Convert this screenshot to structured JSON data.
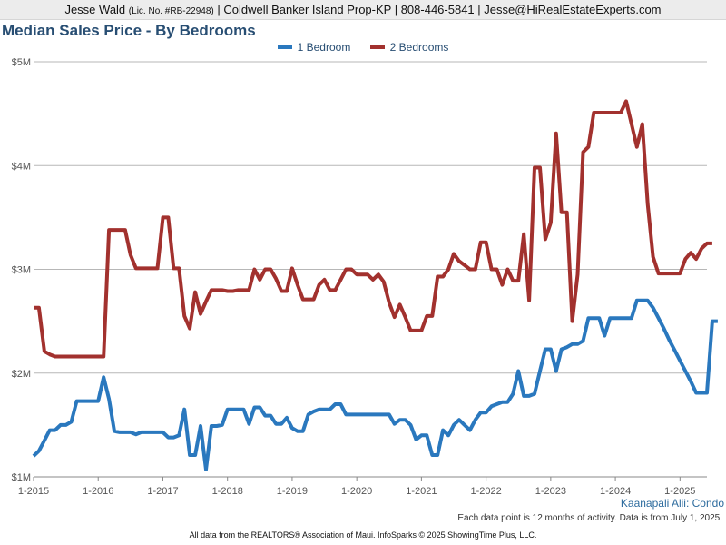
{
  "header": {
    "agent": "Jesse Wald",
    "license": "(Lic. No. #RB-22948)",
    "rest": "| Coldwell Banker Island Prop-KP | 808-446-5841 | Jesse@HiRealEstateExperts.com"
  },
  "region": "Kaanapali Alii: Condo",
  "note": "Each data point is 12 months of activity. Data is from July 1, 2025.",
  "footer": "All data from the REALTORS® Association of Maui. InfoSparks © 2025 ShowingTime Plus, LLC.",
  "colors": {
    "series1": "#2a78be",
    "series2": "#a2312e",
    "grid": "#b7b7b7",
    "text": "#284e73",
    "header_bg": "#ececec"
  },
  "chart_data": {
    "type": "line",
    "title": "Median Sales Price - By Bedrooms",
    "legend_position": "top-center",
    "grid": true,
    "x_range": [
      "2015-01",
      "2025-06"
    ],
    "x_ticks": [
      "1-2015",
      "1-2016",
      "1-2017",
      "1-2018",
      "1-2019",
      "1-2020",
      "1-2021",
      "1-2022",
      "1-2023",
      "1-2024",
      "1-2025"
    ],
    "y_ticks": [
      "$1M",
      "$2M",
      "$3M",
      "$4M",
      "$5M"
    ],
    "y_units": "USD",
    "ylim": [
      1000000,
      5000000
    ],
    "series": [
      {
        "name": "1 Bedroom",
        "color": "#2a78be",
        "points": [
          [
            "2015-01",
            1200000
          ],
          [
            "2015-02",
            1250000
          ],
          [
            "2015-03",
            1350000
          ],
          [
            "2015-04",
            1450000
          ],
          [
            "2015-05",
            1450000
          ],
          [
            "2015-06",
            1500000
          ],
          [
            "2015-07",
            1500000
          ],
          [
            "2015-08",
            1530000
          ],
          [
            "2015-09",
            1730000
          ],
          [
            "2015-10",
            1730000
          ],
          [
            "2015-11",
            1730000
          ],
          [
            "2015-12",
            1730000
          ],
          [
            "2016-01",
            1730000
          ],
          [
            "2016-02",
            1960000
          ],
          [
            "2016-03",
            1750000
          ],
          [
            "2016-04",
            1440000
          ],
          [
            "2016-05",
            1430000
          ],
          [
            "2016-06",
            1430000
          ],
          [
            "2016-07",
            1430000
          ],
          [
            "2016-08",
            1410000
          ],
          [
            "2016-09",
            1430000
          ],
          [
            "2016-10",
            1430000
          ],
          [
            "2016-11",
            1430000
          ],
          [
            "2016-12",
            1430000
          ],
          [
            "2017-01",
            1430000
          ],
          [
            "2017-02",
            1380000
          ],
          [
            "2017-03",
            1380000
          ],
          [
            "2017-04",
            1400000
          ],
          [
            "2017-05",
            1650000
          ],
          [
            "2017-06",
            1210000
          ],
          [
            "2017-07",
            1210000
          ],
          [
            "2017-08",
            1490000
          ],
          [
            "2017-09",
            1070000
          ],
          [
            "2017-10",
            1490000
          ],
          [
            "2017-11",
            1490000
          ],
          [
            "2017-12",
            1500000
          ],
          [
            "2018-01",
            1650000
          ],
          [
            "2018-02",
            1650000
          ],
          [
            "2018-03",
            1650000
          ],
          [
            "2018-04",
            1650000
          ],
          [
            "2018-05",
            1510000
          ],
          [
            "2018-06",
            1670000
          ],
          [
            "2018-07",
            1670000
          ],
          [
            "2018-08",
            1590000
          ],
          [
            "2018-09",
            1590000
          ],
          [
            "2018-10",
            1510000
          ],
          [
            "2018-11",
            1510000
          ],
          [
            "2018-12",
            1570000
          ],
          [
            "2019-01",
            1470000
          ],
          [
            "2019-02",
            1440000
          ],
          [
            "2019-03",
            1440000
          ],
          [
            "2019-04",
            1600000
          ],
          [
            "2019-05",
            1630000
          ],
          [
            "2019-06",
            1650000
          ],
          [
            "2019-07",
            1650000
          ],
          [
            "2019-08",
            1650000
          ],
          [
            "2019-09",
            1700000
          ],
          [
            "2019-10",
            1700000
          ],
          [
            "2019-11",
            1600000
          ],
          [
            "2019-12",
            1600000
          ],
          [
            "2020-01",
            1600000
          ],
          [
            "2020-02",
            1600000
          ],
          [
            "2020-03",
            1600000
          ],
          [
            "2020-04",
            1600000
          ],
          [
            "2020-05",
            1600000
          ],
          [
            "2020-06",
            1600000
          ],
          [
            "2020-07",
            1600000
          ],
          [
            "2020-08",
            1510000
          ],
          [
            "2020-09",
            1550000
          ],
          [
            "2020-10",
            1550000
          ],
          [
            "2020-11",
            1500000
          ],
          [
            "2020-12",
            1360000
          ],
          [
            "2021-01",
            1400000
          ],
          [
            "2021-02",
            1400000
          ],
          [
            "2021-03",
            1210000
          ],
          [
            "2021-04",
            1210000
          ],
          [
            "2021-05",
            1450000
          ],
          [
            "2021-06",
            1400000
          ],
          [
            "2021-07",
            1500000
          ],
          [
            "2021-08",
            1550000
          ],
          [
            "2021-09",
            1500000
          ],
          [
            "2021-10",
            1450000
          ],
          [
            "2021-11",
            1550000
          ],
          [
            "2021-12",
            1620000
          ],
          [
            "2022-01",
            1620000
          ],
          [
            "2022-02",
            1680000
          ],
          [
            "2022-03",
            1700000
          ],
          [
            "2022-04",
            1720000
          ],
          [
            "2022-05",
            1720000
          ],
          [
            "2022-06",
            1800000
          ],
          [
            "2022-07",
            2020000
          ],
          [
            "2022-08",
            1780000
          ],
          [
            "2022-09",
            1780000
          ],
          [
            "2022-10",
            1800000
          ],
          [
            "2022-11",
            2020000
          ],
          [
            "2022-12",
            2230000
          ],
          [
            "2023-01",
            2230000
          ],
          [
            "2023-02",
            2020000
          ],
          [
            "2023-03",
            2230000
          ],
          [
            "2023-04",
            2250000
          ],
          [
            "2023-05",
            2280000
          ],
          [
            "2023-06",
            2280000
          ],
          [
            "2023-07",
            2310000
          ],
          [
            "2023-08",
            2530000
          ],
          [
            "2023-09",
            2530000
          ],
          [
            "2023-10",
            2530000
          ],
          [
            "2023-11",
            2360000
          ],
          [
            "2023-12",
            2530000
          ],
          [
            "2024-01",
            2530000
          ],
          [
            "2024-02",
            2530000
          ],
          [
            "2024-03",
            2530000
          ],
          [
            "2024-04",
            2530000
          ],
          [
            "2024-05",
            2700000
          ],
          [
            "2024-06",
            2700000
          ],
          [
            "2024-07",
            2700000
          ],
          [
            "2024-08",
            2630000
          ],
          [
            "2024-09",
            2530000
          ],
          [
            "2024-10",
            2430000
          ],
          [
            "2024-11",
            2320000
          ],
          [
            "2024-12",
            2220000
          ],
          [
            "2025-01",
            2120000
          ],
          [
            "2025-02",
            2020000
          ],
          [
            "2025-03",
            1920000
          ],
          [
            "2025-04",
            1810000
          ],
          [
            "2025-05",
            1810000
          ],
          [
            "2025-06",
            1810000
          ],
          [
            "2025-07",
            2500000
          ],
          [
            "2025-08",
            2500000
          ]
        ]
      },
      {
        "name": "2 Bedrooms",
        "color": "#a2312e",
        "points": [
          [
            "2015-01",
            2630000
          ],
          [
            "2015-02",
            2630000
          ],
          [
            "2015-03",
            2210000
          ],
          [
            "2015-04",
            2180000
          ],
          [
            "2015-05",
            2160000
          ],
          [
            "2015-06",
            2160000
          ],
          [
            "2015-07",
            2160000
          ],
          [
            "2015-08",
            2160000
          ],
          [
            "2015-09",
            2160000
          ],
          [
            "2015-10",
            2160000
          ],
          [
            "2015-11",
            2160000
          ],
          [
            "2015-12",
            2160000
          ],
          [
            "2016-01",
            2160000
          ],
          [
            "2016-02",
            2160000
          ],
          [
            "2016-03",
            3380000
          ],
          [
            "2016-04",
            3380000
          ],
          [
            "2016-05",
            3380000
          ],
          [
            "2016-06",
            3380000
          ],
          [
            "2016-07",
            3140000
          ],
          [
            "2016-08",
            3010000
          ],
          [
            "2016-09",
            3010000
          ],
          [
            "2016-10",
            3010000
          ],
          [
            "2016-11",
            3010000
          ],
          [
            "2016-12",
            3010000
          ],
          [
            "2017-01",
            3500000
          ],
          [
            "2017-02",
            3500000
          ],
          [
            "2017-03",
            3010000
          ],
          [
            "2017-04",
            3010000
          ],
          [
            "2017-05",
            2550000
          ],
          [
            "2017-06",
            2430000
          ],
          [
            "2017-07",
            2780000
          ],
          [
            "2017-08",
            2570000
          ],
          [
            "2017-09",
            2690000
          ],
          [
            "2017-10",
            2800000
          ],
          [
            "2017-11",
            2800000
          ],
          [
            "2017-12",
            2800000
          ],
          [
            "2018-01",
            2790000
          ],
          [
            "2018-02",
            2790000
          ],
          [
            "2018-03",
            2800000
          ],
          [
            "2018-04",
            2800000
          ],
          [
            "2018-05",
            2800000
          ],
          [
            "2018-06",
            3000000
          ],
          [
            "2018-07",
            2900000
          ],
          [
            "2018-08",
            3000000
          ],
          [
            "2018-09",
            3000000
          ],
          [
            "2018-10",
            2910000
          ],
          [
            "2018-11",
            2790000
          ],
          [
            "2018-12",
            2790000
          ],
          [
            "2019-01",
            3010000
          ],
          [
            "2019-02",
            2850000
          ],
          [
            "2019-03",
            2710000
          ],
          [
            "2019-04",
            2710000
          ],
          [
            "2019-05",
            2710000
          ],
          [
            "2019-06",
            2850000
          ],
          [
            "2019-07",
            2900000
          ],
          [
            "2019-08",
            2800000
          ],
          [
            "2019-09",
            2800000
          ],
          [
            "2019-10",
            2900000
          ],
          [
            "2019-11",
            3000000
          ],
          [
            "2019-12",
            3000000
          ],
          [
            "2020-01",
            2950000
          ],
          [
            "2020-02",
            2950000
          ],
          [
            "2020-03",
            2950000
          ],
          [
            "2020-04",
            2900000
          ],
          [
            "2020-05",
            2950000
          ],
          [
            "2020-06",
            2880000
          ],
          [
            "2020-07",
            2680000
          ],
          [
            "2020-08",
            2540000
          ],
          [
            "2020-09",
            2660000
          ],
          [
            "2020-10",
            2540000
          ],
          [
            "2020-11",
            2410000
          ],
          [
            "2020-12",
            2410000
          ],
          [
            "2021-01",
            2410000
          ],
          [
            "2021-02",
            2550000
          ],
          [
            "2021-03",
            2550000
          ],
          [
            "2021-04",
            2930000
          ],
          [
            "2021-05",
            2930000
          ],
          [
            "2021-06",
            3000000
          ],
          [
            "2021-07",
            3150000
          ],
          [
            "2021-08",
            3080000
          ],
          [
            "2021-09",
            3040000
          ],
          [
            "2021-10",
            3000000
          ],
          [
            "2021-11",
            3000000
          ],
          [
            "2021-12",
            3260000
          ],
          [
            "2022-01",
            3260000
          ],
          [
            "2022-02",
            3000000
          ],
          [
            "2022-03",
            3000000
          ],
          [
            "2022-04",
            2850000
          ],
          [
            "2022-05",
            3000000
          ],
          [
            "2022-06",
            2890000
          ],
          [
            "2022-07",
            2890000
          ],
          [
            "2022-08",
            3340000
          ],
          [
            "2022-09",
            2700000
          ],
          [
            "2022-10",
            3980000
          ],
          [
            "2022-11",
            3980000
          ],
          [
            "2022-12",
            3290000
          ],
          [
            "2023-01",
            3450000
          ],
          [
            "2023-02",
            4310000
          ],
          [
            "2023-03",
            3550000
          ],
          [
            "2023-04",
            3550000
          ],
          [
            "2023-05",
            2500000
          ],
          [
            "2023-06",
            2950000
          ],
          [
            "2023-07",
            4130000
          ],
          [
            "2023-08",
            4180000
          ],
          [
            "2023-09",
            4510000
          ],
          [
            "2023-10",
            4510000
          ],
          [
            "2023-11",
            4510000
          ],
          [
            "2023-12",
            4510000
          ],
          [
            "2024-01",
            4510000
          ],
          [
            "2024-02",
            4510000
          ],
          [
            "2024-03",
            4620000
          ],
          [
            "2024-04",
            4400000
          ],
          [
            "2024-05",
            4180000
          ],
          [
            "2024-06",
            4400000
          ],
          [
            "2024-07",
            3630000
          ],
          [
            "2024-08",
            3120000
          ],
          [
            "2024-09",
            2960000
          ],
          [
            "2024-10",
            2960000
          ],
          [
            "2024-11",
            2960000
          ],
          [
            "2024-12",
            2960000
          ],
          [
            "2025-01",
            2960000
          ],
          [
            "2025-02",
            3100000
          ],
          [
            "2025-03",
            3160000
          ],
          [
            "2025-04",
            3100000
          ],
          [
            "2025-05",
            3200000
          ],
          [
            "2025-06",
            3250000
          ],
          [
            "2025-07",
            3250000
          ]
        ]
      }
    ]
  }
}
